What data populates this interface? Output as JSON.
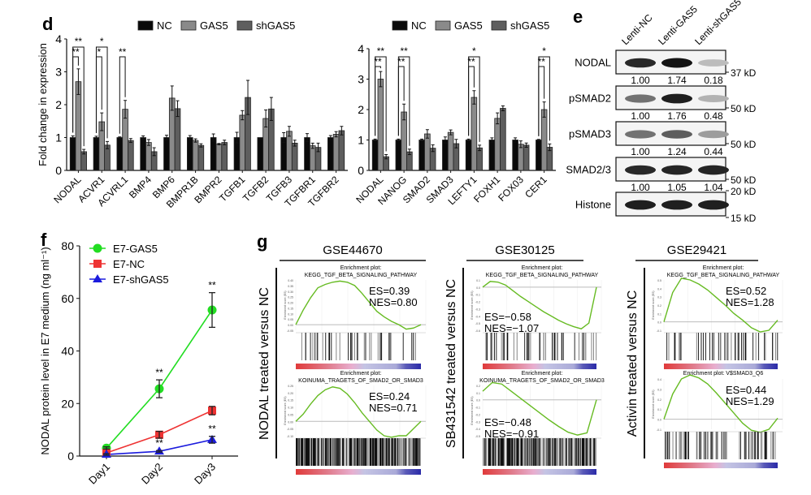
{
  "panels": {
    "d": "d",
    "e": "e",
    "f": "f",
    "g": "g"
  },
  "chart_data": [
    {
      "id": "d-left",
      "type": "bar",
      "title": "",
      "xlabel": "",
      "ylabel": "Fold change in expression",
      "ylim": [
        0,
        4
      ],
      "yticks": [
        0,
        1,
        2,
        3,
        4
      ],
      "grid": false,
      "legend": {
        "position": "top",
        "entries": [
          "NC",
          "GAS5",
          "shGAS5"
        ]
      },
      "colors": {
        "NC": "#0a0a0a",
        "GAS5": "#8a8a8a",
        "shGAS5": "#5e5e5e"
      },
      "categories": [
        "NODAL",
        "ACVR1",
        "ACVRL1",
        "BMP4",
        "BMP6",
        "BMPR1B",
        "BMPR2",
        "TGFB1",
        "TGFB2",
        "TGFB3",
        "TGFBR1",
        "TGFBR2"
      ],
      "series": [
        {
          "name": "NC",
          "values": [
            1.0,
            1.0,
            1.0,
            1.0,
            1.0,
            1.0,
            1.0,
            1.0,
            1.0,
            1.0,
            1.0,
            1.0
          ],
          "errors": [
            0.05,
            0.04,
            0.02,
            0.05,
            0.07,
            0.06,
            0.11,
            0.16,
            0.0,
            0.15,
            0.12,
            0.06
          ]
        },
        {
          "name": "GAS5",
          "values": [
            2.7,
            1.48,
            1.86,
            0.85,
            2.2,
            0.91,
            0.8,
            1.68,
            1.58,
            1.19,
            0.75,
            1.1
          ],
          "errors": [
            0.39,
            0.27,
            0.27,
            0.09,
            0.37,
            0.05,
            0.02,
            0.14,
            0.26,
            0.15,
            0.08,
            0.08
          ]
        },
        {
          "name": "shGAS5",
          "values": [
            0.57,
            0.77,
            0.91,
            0.57,
            1.88,
            0.76,
            0.85,
            2.22,
            1.87,
            0.83,
            0.7,
            1.21
          ],
          "errors": [
            0.07,
            0.11,
            0.06,
            0.12,
            0.24,
            0.05,
            0.07,
            0.52,
            0.35,
            0.09,
            0.13,
            0.13
          ]
        }
      ],
      "significance": [
        {
          "category": "NODAL",
          "outer": "**",
          "inner": "**"
        },
        {
          "category": "ACVR1",
          "outer": "*",
          "inner": "*"
        },
        {
          "category": "ACVRL1",
          "outer": "",
          "inner": "**"
        }
      ]
    },
    {
      "id": "d-right",
      "type": "bar",
      "title": "",
      "xlabel": "",
      "ylabel": "",
      "ylim": [
        0,
        4
      ],
      "yticks": [
        0,
        1,
        2,
        3,
        4
      ],
      "grid": false,
      "legend": {
        "position": "top",
        "entries": [
          "NC",
          "GAS5",
          "shGAS5"
        ]
      },
      "colors": {
        "NC": "#0a0a0a",
        "GAS5": "#8a8a8a",
        "shGAS5": "#5e5e5e"
      },
      "categories": [
        "NODAL",
        "NANOG",
        "SMAD2",
        "SMAD3",
        "LEFTY1",
        "FOXH1",
        "FOX03",
        "CER1"
      ],
      "series": [
        {
          "name": "NC",
          "values": [
            1.0,
            1.0,
            1.0,
            1.0,
            1.0,
            1.0,
            1.0,
            1.0
          ],
          "errors": [
            0.03,
            0.03,
            0.03,
            0.1,
            0.03,
            0.07,
            0.07,
            0.02
          ]
        },
        {
          "name": "GAS5",
          "values": [
            3.0,
            1.92,
            1.2,
            1.25,
            2.4,
            1.71,
            0.86,
            2.0
          ],
          "errors": [
            0.25,
            0.26,
            0.14,
            0.08,
            0.22,
            0.18,
            0.11,
            0.25
          ]
        },
        {
          "name": "shGAS5",
          "values": [
            0.45,
            0.61,
            0.73,
            0.88,
            0.74,
            2.04,
            0.83,
            0.76
          ],
          "errors": [
            0.07,
            0.09,
            0.11,
            0.14,
            0.09,
            0.08,
            0.07,
            0.11
          ]
        }
      ],
      "significance": [
        {
          "category": "NODAL",
          "outer": "**",
          "inner": "**"
        },
        {
          "category": "NANOG",
          "outer": "**",
          "inner": "**"
        },
        {
          "category": "LEFTY1",
          "outer": "*",
          "inner": "**"
        },
        {
          "category": "CER1",
          "outer": "*",
          "inner": "**"
        }
      ]
    },
    {
      "id": "f",
      "type": "line",
      "title": "",
      "xlabel": "",
      "ylabel": "NODAL protein level in E7 medium (ng ml⁻¹)",
      "ylim": [
        0,
        80
      ],
      "yticks": [
        0,
        20,
        40,
        60,
        80
      ],
      "grid": false,
      "legend": {
        "position": "top-left",
        "entries": [
          "E7-GAS5",
          "E7-NC",
          "E7-shGAS5"
        ]
      },
      "x": [
        "Day1",
        "Day2",
        "Day3"
      ],
      "series": [
        {
          "name": "E7-GAS5",
          "color": "#22dd22",
          "marker": "circle",
          "values": [
            3.0,
            25.6,
            55.6
          ],
          "errors": [
            0.5,
            3.4,
            6.6
          ]
        },
        {
          "name": "E7-NC",
          "color": "#ee3333",
          "marker": "square",
          "values": [
            1.2,
            8.1,
            17.3
          ],
          "errors": [
            1.5,
            1.3,
            1.6
          ]
        },
        {
          "name": "E7-shGAS5",
          "color": "#1b1bdd",
          "marker": "triangle",
          "values": [
            0.6,
            1.8,
            6.2
          ],
          "errors": [
            0.3,
            0.3,
            1.3
          ]
        }
      ],
      "annotations": [
        {
          "x": "Day2",
          "series": "E7-GAS5",
          "text": "**"
        },
        {
          "x": "Day2",
          "series": "E7-shGAS5",
          "text": "**"
        },
        {
          "x": "Day3",
          "series": "E7-GAS5",
          "text": "**"
        },
        {
          "x": "Day3",
          "series": "E7-shGAS5",
          "text": "**"
        }
      ]
    }
  ],
  "western_blot": {
    "lanes": [
      "Lenti-NC",
      "Lenti-GAS5",
      "Lenti-shGAS5"
    ],
    "rows": [
      {
        "label": "NODAL",
        "values": [
          "1.00",
          "1.74",
          "0.18"
        ],
        "markers": [
          "37 kD"
        ],
        "intensity": [
          0.9,
          1.0,
          0.2
        ]
      },
      {
        "label": "pSMAD2",
        "values": [
          "1.00",
          "1.76",
          "0.48"
        ],
        "markers": [
          "50 kD"
        ],
        "intensity": [
          0.55,
          0.95,
          0.25
        ]
      },
      {
        "label": "pSMAD3",
        "values": [
          "1.00",
          "1.24",
          "0.44"
        ],
        "markers": [
          "50 kD"
        ],
        "intensity": [
          0.55,
          0.65,
          0.35
        ]
      },
      {
        "label": "SMAD2/3",
        "values": [
          "1.00",
          "1.05",
          "1.04"
        ],
        "markers": [
          "50 kD"
        ],
        "intensity": [
          0.9,
          0.92,
          0.92
        ]
      },
      {
        "label": "Histone",
        "values": [],
        "markers": [
          "20 kD",
          "15 kD"
        ],
        "intensity": [
          0.95,
          0.95,
          0.95
        ]
      }
    ]
  },
  "gsea": {
    "columns": [
      {
        "dataset": "GSE44670",
        "side_label": "NODAL treated versus NC",
        "plots": [
          {
            "title_line1": "Enrichment plot:",
            "title_line2": "KEGG_TGF_BETA_SIGNALING_PATHWAY",
            "es": "ES=0.39",
            "nes": "NES=0.80",
            "ylabel": "Enrichment score (ES)",
            "yticks": [
              "0.40",
              "0.35",
              "0.30",
              "0.25",
              "0.20",
              "0.15",
              "0.10",
              "0.05",
              "0.00",
              "-0.05"
            ],
            "curve": [
              0.0,
              0.13,
              0.24,
              0.33,
              0.36,
              0.38,
              0.39,
              0.38,
              0.35,
              0.28,
              0.2,
              0.12,
              0.07,
              0.03,
              0.0,
              -0.04,
              -0.03,
              0.0
            ],
            "bar_density": "sparse"
          },
          {
            "title_line1": "Enrichment plot:",
            "title_line2": "KOINUMA_TRAGETS_OF_SMAD2_OR_SMAD3",
            "es": "ES=0.24",
            "nes": "NES=0.71",
            "ylabel": "Enrichment score (ES)",
            "yticks": [
              "0.25",
              "0.20",
              "0.15",
              "0.10",
              "0.05",
              "0.00",
              "-0.05",
              "-0.10"
            ],
            "curve": [
              0.0,
              0.05,
              0.12,
              0.18,
              0.22,
              0.24,
              0.23,
              0.19,
              0.13,
              0.06,
              0.0,
              -0.06,
              -0.1,
              -0.11,
              -0.1,
              -0.1,
              -0.05,
              0.0
            ],
            "bar_density": "dense"
          }
        ]
      },
      {
        "dataset": "GSE30125",
        "side_label": "SB431542 treated versus NC",
        "plots": [
          {
            "title_line1": "Enrichment plot:",
            "title_line2": "KEGG_TGF_BETA_SIGNALING_PATHWAY",
            "es": "ES=−0.58",
            "nes": "NES=−1.07",
            "ylabel": "Enrichment score (ES)",
            "yticks": [
              "0.1",
              "0.0",
              "-0.1",
              "-0.2",
              "-0.3",
              "-0.4",
              "-0.5",
              "-0.6"
            ],
            "curve": [
              0.0,
              0.08,
              0.07,
              0.03,
              -0.05,
              -0.13,
              -0.2,
              -0.27,
              -0.34,
              -0.4,
              -0.46,
              -0.51,
              -0.55,
              -0.58,
              -0.5,
              0.0
            ],
            "bar_density": "sparse"
          },
          {
            "title_line1": "Enrichment plot:",
            "title_line2": "KOINUMA_TRAGETS_OF_SMAD2_OR_SMAD3",
            "es": "ES=−0.48",
            "nes": "NES=−0.91",
            "ylabel": "Enrichment score (ES)",
            "yticks": [
              "0.2",
              "0.1",
              "0.0",
              "-0.1",
              "-0.2",
              "-0.3",
              "-0.4",
              "-0.5"
            ],
            "curve": [
              0.12,
              0.24,
              0.22,
              0.12,
              0.02,
              -0.08,
              -0.18,
              -0.28,
              -0.37,
              -0.45,
              -0.49,
              -0.46,
              0.0
            ],
            "bar_density": "dense"
          }
        ]
      },
      {
        "dataset": "GSE29421",
        "side_label": "Activin treated versus NC",
        "plots": [
          {
            "title_line1": "Enrichment plot:",
            "title_line2": "KEGG_TGF_BETA_SIGNALING_PATHWAY",
            "es": "ES=0.52",
            "nes": "NES=1.28",
            "ylabel": "Enrichment score (ES)",
            "yticks": [
              "0.5",
              "0.4",
              "0.3",
              "0.2",
              "0.1",
              "0.0",
              "-0.1"
            ],
            "curve": [
              0.0,
              0.35,
              0.52,
              0.5,
              0.45,
              0.38,
              0.29,
              0.2,
              0.1,
              0.02,
              -0.07,
              -0.12,
              -0.1,
              0.02
            ],
            "bar_density": "sparse"
          },
          {
            "title_line1": "Enrichment plot: V$SMAD3_Q6",
            "title_line2": "",
            "es": "ES=0.44",
            "nes": "NES=1.29",
            "ylabel": "Enrichment score (ES)",
            "yticks": [
              "0.4",
              "0.3",
              "0.2",
              "0.1",
              "0.0",
              "-0.1"
            ],
            "curve": [
              0.0,
              0.25,
              0.4,
              0.44,
              0.41,
              0.35,
              0.26,
              0.16,
              0.06,
              -0.04,
              -0.11,
              -0.13,
              -0.1,
              0.01
            ],
            "bar_density": "medium"
          }
        ]
      }
    ]
  }
}
